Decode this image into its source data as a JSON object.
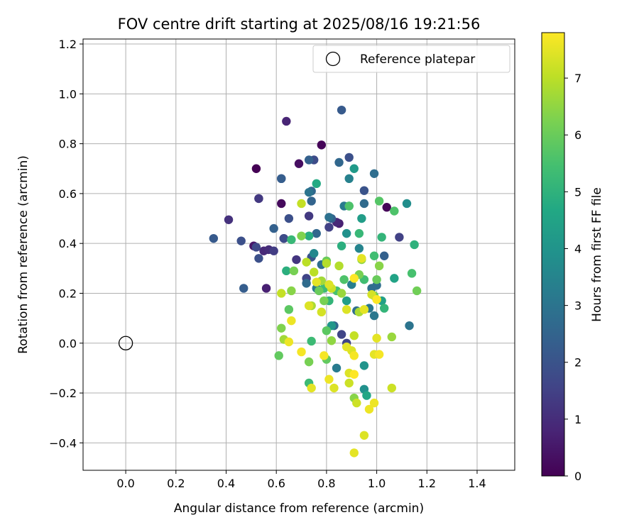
{
  "chart_data": {
    "type": "scatter",
    "title": "FOV centre drift starting at 2025/08/16 19:21:56",
    "xlabel": "Angular distance from reference (arcmin)",
    "ylabel": "Rotation from reference (arcmin)",
    "xlim": [
      -0.17,
      1.55
    ],
    "ylim": [
      -0.51,
      1.22
    ],
    "x_ticks": [
      0.0,
      0.2,
      0.4,
      0.6,
      0.8,
      1.0,
      1.2,
      1.4
    ],
    "x_tick_labels": [
      "0.0",
      "0.2",
      "0.4",
      "0.6",
      "0.8",
      "1.0",
      "1.2",
      "1.4"
    ],
    "y_ticks": [
      -0.4,
      -0.2,
      0.0,
      0.2,
      0.4,
      0.6,
      0.8,
      1.0,
      1.2
    ],
    "y_tick_labels": [
      "−0.4",
      "−0.2",
      "0.0",
      "0.2",
      "0.4",
      "0.6",
      "0.8",
      "1.0",
      "1.2"
    ],
    "grid": true,
    "legend": {
      "placement": "top-right",
      "entries": [
        {
          "label": "Reference platepar",
          "marker": "open-circle"
        }
      ]
    },
    "reference_point": {
      "x": 0.0,
      "y": 0.0
    },
    "colorbar": {
      "label": "Hours from first FF file",
      "colormap": "viridis",
      "range": [
        0,
        7.8
      ],
      "ticks": [
        0,
        1,
        2,
        3,
        4,
        5,
        6,
        7
      ],
      "tick_labels": [
        "0",
        "1",
        "2",
        "3",
        "4",
        "5",
        "6",
        "7"
      ]
    },
    "points": [
      [
        0.52,
        0.7,
        0.0
      ],
      [
        0.78,
        0.795,
        0.1
      ],
      [
        1.04,
        0.545,
        0.1
      ],
      [
        0.62,
        0.56,
        0.2
      ],
      [
        0.69,
        0.72,
        0.3
      ],
      [
        0.63,
        0.42,
        0.3
      ],
      [
        0.51,
        0.39,
        0.5
      ],
      [
        0.53,
        0.58,
        0.6
      ],
      [
        0.64,
        0.89,
        0.8
      ],
      [
        0.56,
        0.22,
        0.7
      ],
      [
        0.85,
        0.48,
        0.7
      ],
      [
        0.55,
        0.37,
        0.9
      ],
      [
        0.41,
        0.495,
        1.1
      ],
      [
        0.57,
        0.375,
        1.0
      ],
      [
        0.84,
        0.485,
        0.9
      ],
      [
        0.68,
        0.335,
        1.2
      ],
      [
        0.53,
        0.58,
        1.3
      ],
      [
        0.73,
        0.51,
        1.3
      ],
      [
        0.59,
        0.37,
        1.4
      ],
      [
        0.81,
        0.465,
        1.5
      ],
      [
        1.09,
        0.425,
        1.5
      ],
      [
        0.72,
        0.26,
        1.6
      ],
      [
        0.86,
        0.035,
        1.6
      ],
      [
        0.52,
        0.385,
        1.7
      ],
      [
        0.62,
        0.66,
        1.7
      ],
      [
        0.88,
        0.0,
        1.6
      ],
      [
        0.63,
        0.42,
        1.8
      ],
      [
        0.75,
        0.735,
        1.8
      ],
      [
        0.46,
        0.41,
        1.9
      ],
      [
        0.53,
        0.34,
        1.9
      ],
      [
        0.65,
        0.5,
        1.9
      ],
      [
        0.89,
        0.745,
        1.9
      ],
      [
        0.74,
        0.345,
        2.0
      ],
      [
        0.95,
        0.612,
        2.0
      ],
      [
        0.86,
        0.935,
        2.2
      ],
      [
        0.35,
        0.42,
        2.2
      ],
      [
        0.47,
        0.22,
        2.3
      ],
      [
        0.62,
        0.66,
        2.3
      ],
      [
        0.59,
        0.46,
        2.4
      ],
      [
        0.73,
        0.735,
        2.4
      ],
      [
        0.82,
        0.5,
        2.4
      ],
      [
        1.03,
        0.35,
        2.4
      ],
      [
        0.74,
        0.57,
        2.5
      ],
      [
        0.76,
        0.44,
        2.6
      ],
      [
        0.74,
        0.61,
        2.6
      ],
      [
        0.83,
        0.07,
        2.6
      ],
      [
        0.95,
        0.56,
        2.7
      ],
      [
        0.85,
        0.725,
        2.6
      ],
      [
        0.72,
        0.24,
        2.7
      ],
      [
        0.92,
        0.13,
        2.8
      ],
      [
        0.78,
        0.315,
        2.8
      ],
      [
        0.98,
        0.22,
        2.8
      ],
      [
        0.99,
        0.68,
        2.8
      ],
      [
        1.0,
        0.232,
        2.8
      ],
      [
        0.81,
        0.505,
        2.9
      ],
      [
        0.73,
        0.605,
        3.0
      ],
      [
        0.87,
        0.55,
        3.2
      ],
      [
        1.13,
        0.07,
        3.0
      ],
      [
        0.97,
        0.14,
        3.1
      ],
      [
        0.99,
        0.11,
        3.1
      ],
      [
        0.84,
        -0.1,
        3.2
      ],
      [
        0.76,
        0.22,
        3.2
      ],
      [
        0.9,
        0.235,
        3.3
      ],
      [
        0.89,
        0.66,
        3.4
      ],
      [
        0.93,
        0.38,
        3.5
      ],
      [
        0.75,
        0.36,
        3.6
      ],
      [
        1.12,
        0.56,
        3.8
      ],
      [
        0.88,
        0.44,
        3.9
      ],
      [
        0.95,
        -0.185,
        3.9
      ],
      [
        0.95,
        -0.09,
        4.0
      ],
      [
        0.82,
        0.07,
        4.1
      ],
      [
        0.91,
        0.7,
        4.2
      ],
      [
        0.94,
        0.5,
        4.3
      ],
      [
        0.88,
        0.17,
        4.3
      ],
      [
        1.02,
        0.17,
        4.4
      ],
      [
        0.89,
        0.55,
        4.5
      ],
      [
        1.07,
        0.26,
        4.5
      ],
      [
        0.96,
        -0.21,
        4.6
      ],
      [
        0.76,
        0.64,
        4.7
      ],
      [
        0.73,
        0.43,
        4.8
      ],
      [
        0.86,
        0.39,
        4.9
      ],
      [
        0.64,
        0.29,
        4.9
      ],
      [
        1.15,
        0.395,
        5.0
      ],
      [
        1.02,
        0.425,
        5.1
      ],
      [
        1.03,
        0.14,
        5.1
      ],
      [
        0.81,
        0.17,
        5.1
      ],
      [
        0.93,
        0.44,
        5.2
      ],
      [
        0.66,
        0.415,
        5.2
      ],
      [
        0.74,
        0.008,
        5.3
      ],
      [
        0.73,
        -0.16,
        5.3
      ],
      [
        0.79,
        0.22,
        5.3
      ],
      [
        0.95,
        0.255,
        5.4
      ],
      [
        0.99,
        0.35,
        5.4
      ],
      [
        1.14,
        0.28,
        5.5
      ],
      [
        0.84,
        0.21,
        5.5
      ],
      [
        0.87,
        0.255,
        5.6
      ],
      [
        0.89,
        0.55,
        5.6
      ],
      [
        1.07,
        0.53,
        5.6
      ],
      [
        1.01,
        0.57,
        5.7
      ],
      [
        0.8,
        0.05,
        5.8
      ],
      [
        0.65,
        0.135,
        5.8
      ],
      [
        0.61,
        -0.05,
        5.9
      ],
      [
        0.8,
        -0.065,
        5.9
      ],
      [
        0.77,
        0.21,
        6.0
      ],
      [
        1.0,
        0.255,
        6.0
      ],
      [
        0.8,
        0.33,
        6.0
      ],
      [
        1.16,
        0.21,
        6.1
      ],
      [
        0.99,
        0.19,
        6.1
      ],
      [
        0.67,
        0.29,
        6.2
      ],
      [
        0.73,
        -0.075,
        6.2
      ],
      [
        0.79,
        0.17,
        6.2
      ],
      [
        0.93,
        0.275,
        6.2
      ],
      [
        0.62,
        0.06,
        6.3
      ],
      [
        0.7,
        0.43,
        6.3
      ],
      [
        0.91,
        -0.22,
        6.4
      ],
      [
        0.66,
        0.21,
        6.4
      ],
      [
        1.01,
        0.31,
        6.4
      ],
      [
        0.82,
        0.01,
        6.5
      ],
      [
        0.94,
        0.335,
        6.5
      ],
      [
        0.86,
        0.2,
        6.6
      ],
      [
        1.06,
        0.025,
        6.6
      ],
      [
        0.63,
        0.015,
        6.7
      ],
      [
        0.78,
        0.25,
        6.7
      ],
      [
        0.93,
        0.125,
        6.8
      ],
      [
        0.74,
        0.15,
        6.8
      ],
      [
        0.8,
        0.32,
        6.9
      ],
      [
        0.85,
        0.31,
        6.9
      ],
      [
        0.75,
        0.285,
        7.0
      ],
      [
        0.72,
        0.325,
        7.0
      ],
      [
        0.7,
        0.56,
        7.1
      ],
      [
        0.91,
        0.03,
        7.1
      ],
      [
        0.62,
        0.2,
        7.1
      ],
      [
        1.06,
        -0.18,
        7.2
      ],
      [
        0.89,
        -0.16,
        7.2
      ],
      [
        0.92,
        -0.24,
        7.2
      ],
      [
        0.82,
        0.22,
        7.2
      ],
      [
        0.98,
        0.195,
        7.3
      ],
      [
        0.78,
        0.125,
        7.3
      ],
      [
        0.73,
        0.15,
        7.4
      ],
      [
        0.81,
        0.235,
        7.4
      ],
      [
        0.88,
        0.135,
        7.4
      ],
      [
        0.83,
        -0.18,
        7.4
      ],
      [
        0.95,
        -0.37,
        7.4
      ],
      [
        0.9,
        -0.03,
        7.4
      ],
      [
        0.89,
        -0.12,
        7.4
      ],
      [
        0.76,
        0.245,
        7.5
      ],
      [
        0.74,
        -0.18,
        7.5
      ],
      [
        0.99,
        -0.045,
        7.5
      ],
      [
        1.0,
        0.02,
        7.5
      ],
      [
        0.94,
        0.34,
        7.5
      ],
      [
        0.91,
        -0.44,
        7.5
      ],
      [
        0.88,
        -0.015,
        7.5
      ],
      [
        0.95,
        0.135,
        7.5
      ],
      [
        0.66,
        0.09,
        7.6
      ],
      [
        0.65,
        0.005,
        7.6
      ],
      [
        0.81,
        -0.145,
        7.6
      ],
      [
        0.97,
        -0.265,
        7.6
      ],
      [
        0.99,
        -0.24,
        7.6
      ],
      [
        0.79,
        -0.05,
        7.7
      ],
      [
        0.91,
        -0.05,
        7.7
      ],
      [
        1.01,
        -0.045,
        7.7
      ],
      [
        0.7,
        -0.035,
        7.7
      ],
      [
        0.91,
        -0.125,
        7.8
      ],
      [
        1.0,
        0.175,
        7.8
      ],
      [
        0.91,
        0.26,
        7.8
      ]
    ]
  }
}
